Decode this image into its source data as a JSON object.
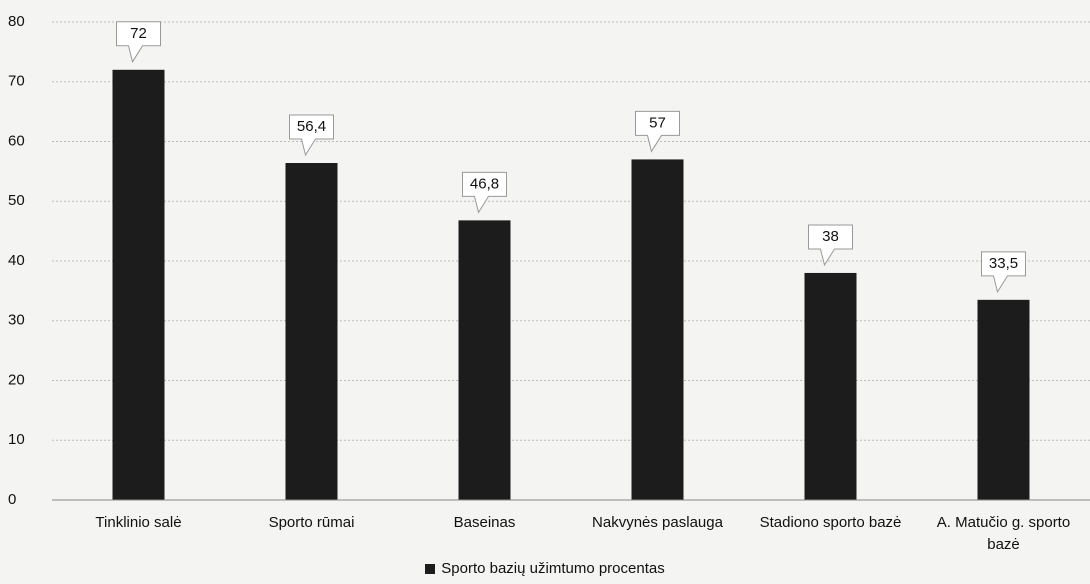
{
  "chart_data": {
    "type": "bar",
    "categories": [
      "Tinklinio salė",
      "Sporto rūmai",
      "Baseinas",
      "Nakvynės paslauga",
      "Stadiono sporto bazė",
      "A. Matučio g. sporto bazė"
    ],
    "values": [
      72,
      56.4,
      46.8,
      57,
      38,
      33.5
    ],
    "value_labels": [
      "72",
      "56,4",
      "46,8",
      "57",
      "38",
      "33,5"
    ],
    "color": "#1c1c1c",
    "ylim": [
      0,
      80
    ],
    "yticks": [
      0,
      10,
      20,
      30,
      40,
      50,
      60,
      70,
      80
    ],
    "grid": true,
    "legend": "Sporto bazių užimtumo procentas"
  }
}
